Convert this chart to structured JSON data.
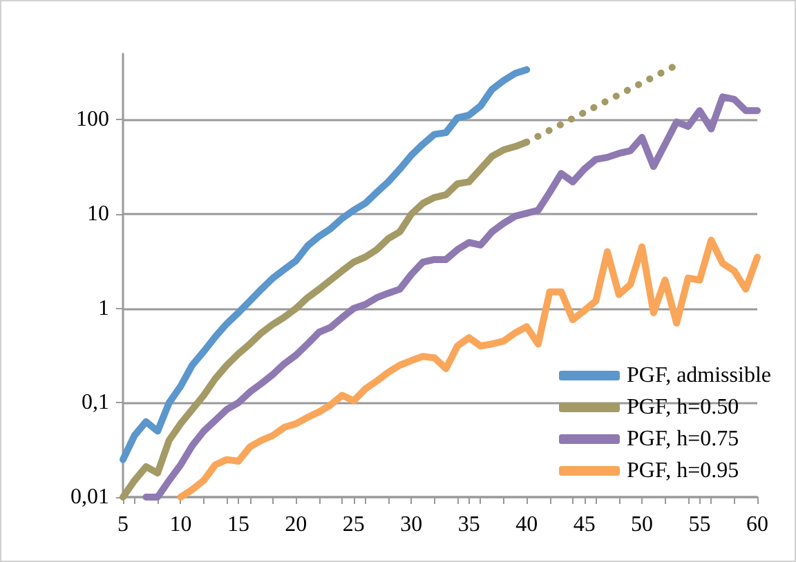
{
  "chart_data": {
    "type": "line",
    "log": "y",
    "grid": "y",
    "legend": "bottom right",
    "marker": "none",
    "line_style": "solid",
    "xlim": [
      5,
      60
    ],
    "xticks": [
      5,
      10,
      15,
      20,
      25,
      30,
      35,
      40,
      45,
      50,
      55,
      60
    ],
    "ylim": [
      0.01,
      500
    ],
    "yticks": [
      {
        "value": 0.01,
        "label": "0,01"
      },
      {
        "value": 0.1,
        "label": "0,1"
      },
      1,
      10,
      100
    ],
    "series": [
      {
        "name": "PGF, admissible",
        "color": "#5b96cc",
        "x": [
          5,
          6,
          7,
          8,
          9,
          10,
          11,
          12,
          13,
          14,
          15,
          16,
          17,
          18,
          19,
          20,
          21,
          22,
          23,
          24,
          25,
          26,
          27,
          28,
          29,
          30,
          31,
          32,
          33,
          34,
          35,
          36,
          37,
          38,
          39,
          40
        ],
        "values": [
          0.025,
          0.045,
          0.063,
          0.05,
          0.1,
          0.15,
          0.25,
          0.35,
          0.5,
          0.69,
          0.9,
          1.2,
          1.6,
          2.1,
          2.6,
          3.2,
          4.6,
          5.8,
          7,
          9,
          11,
          13,
          17,
          22,
          30,
          42,
          55,
          70,
          73,
          105,
          112,
          140,
          210,
          260,
          310,
          340
        ]
      },
      {
        "name": "PGF, h=0.50",
        "color": "#a49a65",
        "x": [
          5,
          6,
          7,
          8,
          9,
          10,
          11,
          12,
          13,
          14,
          15,
          16,
          17,
          18,
          19,
          20,
          21,
          22,
          23,
          24,
          25,
          26,
          27,
          28,
          29,
          30,
          31,
          32,
          33,
          34,
          35,
          36,
          37,
          38,
          39,
          40
        ],
        "values": [
          0.01,
          0.015,
          0.021,
          0.018,
          0.04,
          0.06,
          0.085,
          0.12,
          0.18,
          0.25,
          0.33,
          0.42,
          0.55,
          0.68,
          0.81,
          1.0,
          1.3,
          1.6,
          2.0,
          2.5,
          3.1,
          3.5,
          4.2,
          5.5,
          6.5,
          10,
          13,
          15,
          16,
          21,
          22,
          30,
          41,
          48,
          52,
          58
        ]
      },
      {
        "color": "#a49a65",
        "line_style": "dotted",
        "x": [
          40,
          53
        ],
        "values": [
          58,
          380
        ]
      },
      {
        "name": "PGF, h=0.75",
        "color": "#8f79b2",
        "x": [
          7,
          8,
          9,
          10,
          11,
          12,
          13,
          14,
          15,
          16,
          17,
          18,
          19,
          20,
          21,
          22,
          23,
          24,
          25,
          26,
          27,
          28,
          29,
          30,
          31,
          32,
          33,
          34,
          35,
          36,
          37,
          38,
          39,
          40,
          41,
          42,
          43,
          44,
          45,
          46,
          47,
          48,
          49,
          50,
          51,
          52,
          53,
          54,
          55,
          56,
          57,
          58,
          59,
          60
        ],
        "values": [
          0.01,
          0.01,
          0.015,
          0.022,
          0.035,
          0.05,
          0.065,
          0.085,
          0.1,
          0.13,
          0.16,
          0.2,
          0.26,
          0.32,
          0.42,
          0.56,
          0.63,
          0.8,
          1.0,
          1.1,
          1.3,
          1.45,
          1.6,
          2.3,
          3.1,
          3.3,
          3.3,
          4.2,
          5,
          4.7,
          6.5,
          8,
          9.5,
          10.2,
          11,
          17,
          27,
          22,
          30,
          38,
          40,
          44,
          47,
          65,
          32,
          55,
          95,
          85,
          125,
          80,
          175,
          165,
          125,
          125
        ]
      },
      {
        "name": "PGF, h=0.95",
        "color": "#f9a65a",
        "x": [
          10,
          11,
          12,
          13,
          14,
          15,
          16,
          17,
          18,
          19,
          20,
          21,
          22,
          23,
          24,
          25,
          26,
          27,
          28,
          29,
          30,
          31,
          32,
          33,
          34,
          35,
          36,
          37,
          38,
          39,
          40,
          41,
          42,
          43,
          44,
          45,
          46,
          47,
          48,
          49,
          50,
          51,
          52,
          53,
          54,
          55,
          56,
          57,
          58,
          59,
          60
        ],
        "values": [
          0.01,
          0.012,
          0.015,
          0.022,
          0.025,
          0.024,
          0.034,
          0.04,
          0.045,
          0.055,
          0.06,
          0.07,
          0.08,
          0.095,
          0.12,
          0.105,
          0.14,
          0.17,
          0.21,
          0.25,
          0.28,
          0.31,
          0.3,
          0.23,
          0.4,
          0.49,
          0.4,
          0.42,
          0.45,
          0.55,
          0.64,
          0.42,
          1.5,
          1.5,
          0.76,
          0.95,
          1.2,
          4,
          1.4,
          1.8,
          4.5,
          0.9,
          2,
          0.7,
          2.1,
          2,
          5.3,
          3,
          2.5,
          1.6,
          3.5
        ]
      }
    ]
  }
}
